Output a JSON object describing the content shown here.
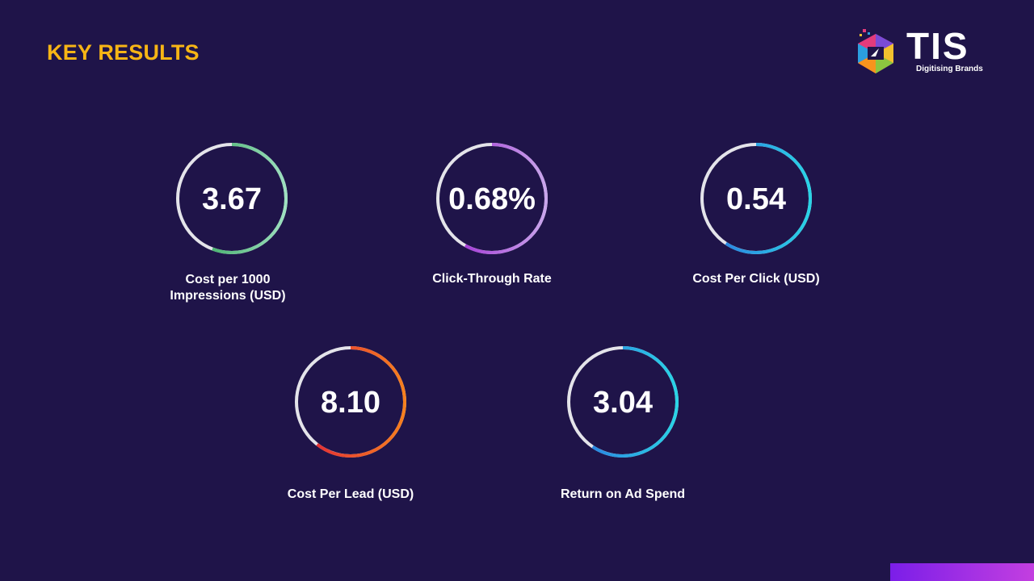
{
  "header": {
    "title": "KEY RESULTS"
  },
  "logo": {
    "name": "TIS",
    "tagline": "Digitising Brands"
  },
  "metrics": [
    {
      "value": "3.67",
      "label": "Cost per 1000 Impressions (USD)"
    },
    {
      "value": "0.68%",
      "label": "Click-Through Rate"
    },
    {
      "value": "0.54",
      "label": "Cost Per Click (USD)"
    },
    {
      "value": "8.10",
      "label": "Cost Per Lead (USD)"
    },
    {
      "value": "3.04",
      "label": "Return on Ad Spend"
    }
  ]
}
